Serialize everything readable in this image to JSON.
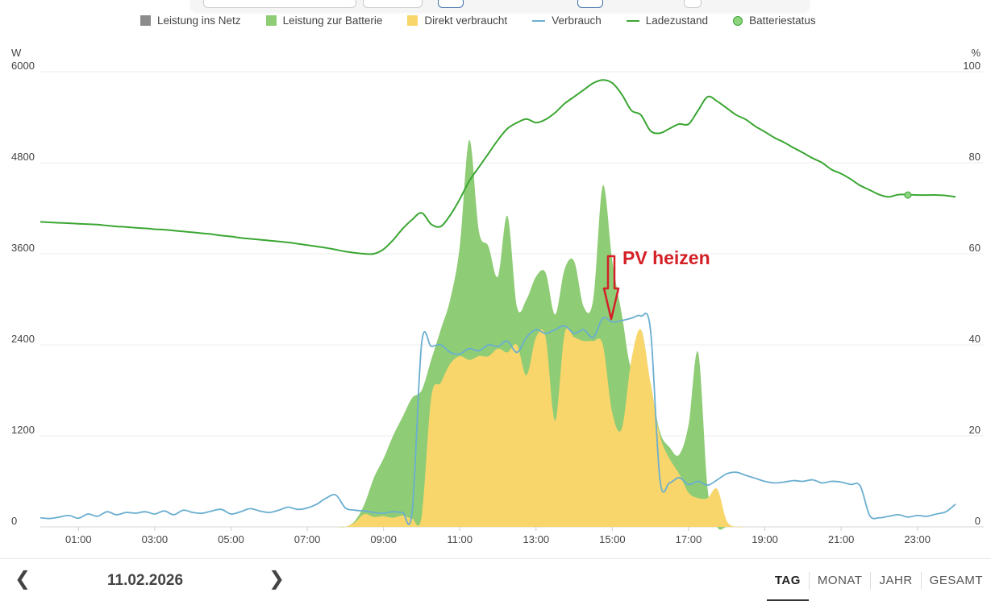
{
  "legend": {
    "items": [
      {
        "label": "Leistung ins Netz",
        "color": "#8c8c8c",
        "kind": "square"
      },
      {
        "label": "Leistung zur Batterie",
        "color": "#8fcc76",
        "kind": "square"
      },
      {
        "label": "Direkt verbraucht",
        "color": "#f8d66b",
        "kind": "square"
      },
      {
        "label": "Verbrauch",
        "color": "#6aaed0",
        "kind": "line"
      },
      {
        "label": "Ladezustand",
        "color": "#3aa632",
        "kind": "line"
      },
      {
        "label": "Batteriestatus",
        "color": "#8ed47f",
        "kind": "dot"
      }
    ]
  },
  "annotation": {
    "text": "PV heizen",
    "color": "#d42027"
  },
  "navigation": {
    "date": "11.02.2026",
    "prev_icon": "chevron-left-icon",
    "next_icon": "chevron-right-icon",
    "tabs": [
      {
        "label": "TAG",
        "active": true
      },
      {
        "label": "MONAT",
        "active": false
      },
      {
        "label": "JAHR",
        "active": false
      },
      {
        "label": "GESAMT",
        "active": false
      }
    ]
  },
  "chart_data": {
    "type": "area",
    "y_left_label": "W",
    "y_right_label": "%",
    "y_left_ticks": [
      "0",
      "1200",
      "2400",
      "3600",
      "4800",
      "6000"
    ],
    "y_right_ticks": [
      "0",
      "20",
      "40",
      "60",
      "80",
      "100"
    ],
    "ylim_left": [
      0,
      6000
    ],
    "ylim_right": [
      0,
      100
    ],
    "x_ticks": [
      "01:00",
      "03:00",
      "05:00",
      "07:00",
      "09:00",
      "11:00",
      "13:00",
      "15:00",
      "17:00",
      "19:00",
      "21:00",
      "23:00"
    ],
    "x_hours": [
      0.0,
      0.25,
      0.5,
      0.75,
      1.0,
      1.25,
      1.5,
      1.75,
      2.0,
      2.25,
      2.5,
      2.75,
      3.0,
      3.25,
      3.5,
      3.75,
      4.0,
      4.25,
      4.5,
      4.75,
      5.0,
      5.25,
      5.5,
      5.75,
      6.0,
      6.25,
      6.5,
      6.75,
      7.0,
      7.25,
      7.5,
      7.75,
      8.0,
      8.25,
      8.5,
      8.75,
      9.0,
      9.25,
      9.5,
      9.75,
      10.0,
      10.25,
      10.5,
      10.75,
      11.0,
      11.25,
      11.5,
      11.75,
      12.0,
      12.25,
      12.5,
      12.75,
      13.0,
      13.25,
      13.5,
      13.75,
      14.0,
      14.25,
      14.5,
      14.75,
      15.0,
      15.25,
      15.5,
      15.75,
      16.0,
      16.25,
      16.5,
      16.75,
      17.0,
      17.25,
      17.5,
      17.75,
      18.0,
      18.25,
      18.5,
      18.75,
      19.0,
      19.25,
      19.5,
      19.75,
      20.0,
      20.25,
      20.5,
      20.75,
      21.0,
      21.25,
      21.5,
      21.75,
      22.0,
      22.25,
      22.5,
      22.75,
      23.0,
      23.25,
      23.5,
      23.75,
      24.0
    ],
    "series": [
      {
        "name": "Direkt verbraucht",
        "kind": "area",
        "color": "#f8d66b",
        "axis": "left",
        "values": [
          0,
          0,
          0,
          0,
          0,
          0,
          0,
          0,
          0,
          0,
          0,
          0,
          0,
          0,
          0,
          0,
          0,
          0,
          0,
          0,
          0,
          0,
          0,
          0,
          0,
          0,
          0,
          0,
          0,
          0,
          0,
          0,
          0,
          60,
          170,
          130,
          140,
          120,
          150,
          110,
          140,
          1700,
          1900,
          2150,
          2250,
          2200,
          2250,
          2250,
          2350,
          2300,
          2400,
          2000,
          2500,
          2500,
          1400,
          2550,
          2500,
          2450,
          2450,
          2400,
          1500,
          1300,
          2200,
          2600,
          1900,
          1200,
          900,
          700,
          450,
          380,
          380,
          500,
          80,
          0,
          0,
          0,
          0,
          0,
          0,
          0,
          0,
          0,
          0,
          0,
          0,
          0,
          0,
          0,
          0,
          0,
          0,
          0,
          0,
          0,
          0,
          0,
          0
        ]
      },
      {
        "name": "Leistung zur Batterie",
        "kind": "area",
        "color": "#8fcc76",
        "axis": "left",
        "values": [
          0,
          0,
          0,
          0,
          0,
          0,
          0,
          0,
          0,
          0,
          0,
          0,
          0,
          0,
          0,
          0,
          0,
          0,
          0,
          0,
          0,
          0,
          0,
          0,
          0,
          0,
          0,
          0,
          0,
          0,
          0,
          0,
          0,
          80,
          300,
          650,
          900,
          1200,
          1450,
          1700,
          1800,
          2200,
          2600,
          3000,
          3700,
          5100,
          3900,
          3700,
          3300,
          4100,
          2900,
          3000,
          3300,
          3350,
          2800,
          3400,
          3500,
          2900,
          3000,
          4500,
          3500,
          2800,
          2100,
          2600,
          1900,
          1250,
          1050,
          950,
          1350,
          2300,
          500,
          0,
          0,
          0,
          0,
          0,
          0,
          0,
          0,
          0,
          0,
          0,
          0,
          0,
          0,
          0,
          0,
          0,
          0,
          0,
          0,
          0,
          0,
          0,
          0,
          0,
          0
        ]
      },
      {
        "name": "Verbrauch",
        "kind": "line",
        "color": "#6aaed0",
        "axis": "left",
        "values": [
          120,
          110,
          130,
          150,
          115,
          170,
          140,
          200,
          160,
          190,
          180,
          200,
          170,
          210,
          160,
          220,
          190,
          180,
          210,
          230,
          170,
          200,
          240,
          210,
          190,
          220,
          260,
          230,
          250,
          300,
          380,
          420,
          250,
          220,
          210,
          190,
          180,
          200,
          190,
          200,
          2420,
          2380,
          2400,
          2300,
          2280,
          2350,
          2320,
          2400,
          2380,
          2450,
          2300,
          2500,
          2600,
          2550,
          2600,
          2650,
          2550,
          2600,
          2500,
          2750,
          2700,
          2720,
          2750,
          2780,
          2600,
          620,
          580,
          650,
          560,
          600,
          550,
          620,
          700,
          720,
          680,
          640,
          600,
          580,
          590,
          610,
          600,
          620,
          580,
          600,
          590,
          560,
          540,
          150,
          120,
          140,
          160,
          130,
          150,
          140,
          170,
          200,
          300
        ]
      },
      {
        "name": "Ladezustand",
        "kind": "line",
        "color": "#3aa632",
        "axis": "right",
        "values": [
          67.0,
          66.9,
          66.8,
          66.7,
          66.6,
          66.5,
          66.4,
          66.2,
          66.0,
          65.9,
          65.7,
          65.6,
          65.4,
          65.3,
          65.1,
          64.9,
          64.7,
          64.5,
          64.3,
          64.0,
          63.8,
          63.5,
          63.3,
          63.1,
          62.9,
          62.7,
          62.5,
          62.2,
          61.9,
          61.6,
          61.3,
          60.9,
          60.5,
          60.2,
          60.0,
          60.0,
          61.0,
          63.0,
          65.5,
          67.5,
          69.0,
          66.5,
          66.0,
          68.5,
          72.0,
          76.0,
          79.0,
          82.0,
          85.0,
          87.5,
          88.8,
          89.6,
          88.8,
          89.5,
          91.0,
          93.0,
          94.5,
          96.0,
          97.5,
          98.2,
          97.5,
          95.0,
          91.5,
          90.5,
          87.0,
          86.5,
          87.5,
          88.5,
          88.5,
          91.5,
          94.5,
          93.5,
          92.0,
          90.5,
          89.5,
          88.0,
          86.8,
          85.5,
          84.5,
          83.3,
          82.2,
          81.0,
          80.0,
          78.5,
          77.6,
          76.4,
          75.0,
          74.0,
          73.0,
          72.5,
          73.0,
          73.0,
          72.9,
          72.9,
          72.9,
          72.8,
          72.5
        ]
      }
    ],
    "battery_status_marker": {
      "x_hour": 22.75,
      "value": 72.9
    }
  }
}
